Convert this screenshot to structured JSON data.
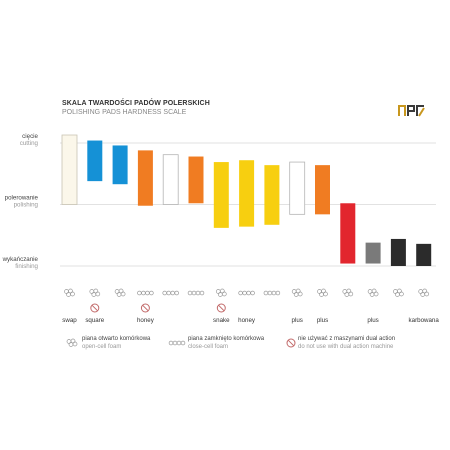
{
  "header": {
    "title_pl": "SKALA TWARDOŚCI PADÓW  POLERSKICH",
    "title_en": "POLISHING PADS HARDNESS SCALE"
  },
  "chart_data": {
    "type": "bar",
    "levels": [
      {
        "pl": "cięcie",
        "en": "cutting",
        "value": 2
      },
      {
        "pl": "polerowanie",
        "en": "polishing",
        "value": 1
      },
      {
        "pl": "wykańczanie",
        "en": "finishing",
        "value": 0
      }
    ],
    "ylim": [
      0,
      2.2
    ],
    "grid": true,
    "bars": [
      {
        "low": 1.0,
        "high": 2.13,
        "color": "#fbf7ea",
        "outline": "#c9c4b4",
        "label": "swap",
        "foam": "open",
        "no_da": false
      },
      {
        "low": 1.38,
        "high": 2.04,
        "color": "#1591d6",
        "outline": "",
        "label": "square",
        "foam": "open",
        "no_da": true
      },
      {
        "low": 1.33,
        "high": 1.96,
        "color": "#1591d6",
        "outline": "",
        "label": "",
        "foam": "open",
        "no_da": false
      },
      {
        "low": 0.98,
        "high": 1.88,
        "color": "#f07c22",
        "outline": "",
        "label": "honey",
        "foam": "closed",
        "no_da": true
      },
      {
        "low": 1.0,
        "high": 1.81,
        "color": "#ffffff",
        "outline": "#b5b5b5",
        "label": "",
        "foam": "closed",
        "no_da": false
      },
      {
        "low": 1.02,
        "high": 1.78,
        "color": "#f07c22",
        "outline": "",
        "label": "",
        "foam": "closed",
        "no_da": false
      },
      {
        "low": 0.62,
        "high": 1.69,
        "color": "#f7cf10",
        "outline": "",
        "label": "snake",
        "foam": "open",
        "no_da": true
      },
      {
        "low": 0.64,
        "high": 1.72,
        "color": "#f7cf10",
        "outline": "",
        "label": "honey",
        "foam": "closed",
        "no_da": false
      },
      {
        "low": 0.67,
        "high": 1.64,
        "color": "#f7cf10",
        "outline": "",
        "label": "",
        "foam": "closed",
        "no_da": false
      },
      {
        "low": 0.84,
        "high": 1.69,
        "color": "#ffffff",
        "outline": "#b5b5b5",
        "label": "plus",
        "foam": "open",
        "no_da": false
      },
      {
        "low": 0.84,
        "high": 1.64,
        "color": "#f07c22",
        "outline": "",
        "label": "plus",
        "foam": "open",
        "no_da": false
      },
      {
        "low": 0.04,
        "high": 1.02,
        "color": "#e2262e",
        "outline": "",
        "label": "",
        "foam": "open",
        "no_da": false
      },
      {
        "low": 0.04,
        "high": 0.38,
        "color": "#7a7a7a",
        "outline": "",
        "label": "plus",
        "foam": "open",
        "no_da": false
      },
      {
        "low": 0.0,
        "high": 0.44,
        "color": "#2b2b2b",
        "outline": "",
        "label": "",
        "foam": "open",
        "no_da": false
      },
      {
        "low": 0.0,
        "high": 0.36,
        "color": "#2b2b2b",
        "outline": "",
        "label": "karbowana",
        "foam": "open",
        "no_da": false
      }
    ]
  },
  "legend": [
    {
      "pl": "piana otwarto komórkowa",
      "en": "open-cell foam",
      "icon": "open-cell-icon"
    },
    {
      "pl": "piana zamknięto komórkowa",
      "en": "close-cell foam",
      "icon": "closed-cell-icon"
    },
    {
      "pl": "nie używać z maszynami dual action",
      "en": "do not use with dual action machine",
      "icon": "no-dual-action-icon"
    }
  ],
  "colors": {
    "gold": "#c8971e",
    "dark": "#3a3a3a",
    "grid": "#d9d9d9"
  }
}
